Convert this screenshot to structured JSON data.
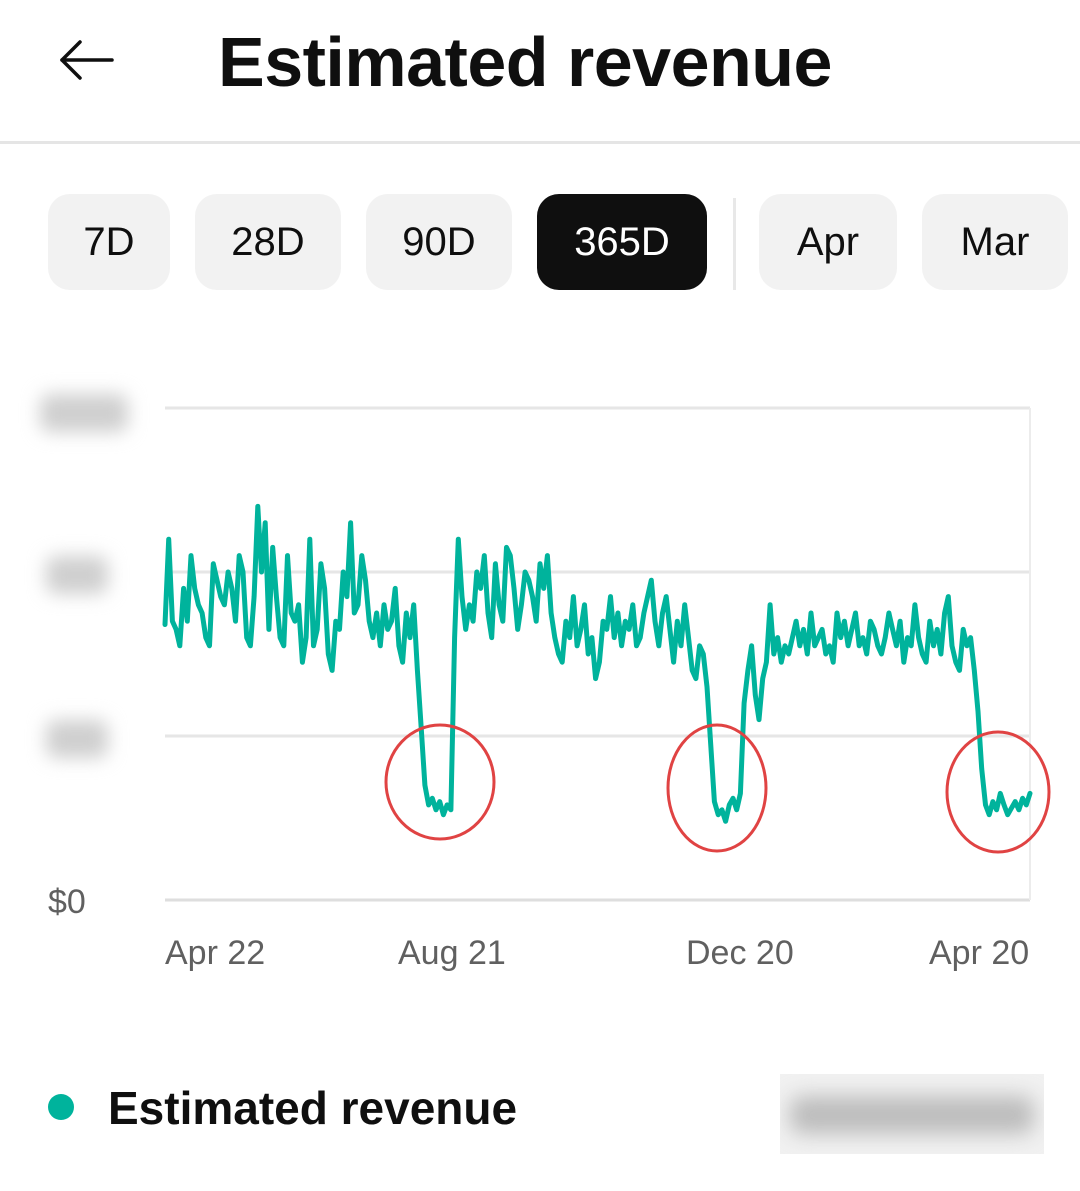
{
  "header": {
    "title": "Estimated revenue",
    "back_icon": "arrow-left-icon"
  },
  "chips": {
    "items": [
      {
        "label": "7D",
        "active": false
      },
      {
        "label": "28D",
        "active": false
      },
      {
        "label": "90D",
        "active": false
      },
      {
        "label": "365D",
        "active": true
      },
      {
        "label": "Apr",
        "active": false
      },
      {
        "label": "Mar",
        "active": false
      }
    ]
  },
  "chart_data": {
    "type": "line",
    "title": "",
    "xlabel": "",
    "ylabel": "",
    "ylim": [
      0,
      3
    ],
    "y_tick_labels": [
      "$0"
    ],
    "x_tick_labels": [
      "Apr 22",
      "Aug 21",
      "Dec 20",
      "Apr 20"
    ],
    "grid": true,
    "series_color": "#00b39c",
    "annotation_color": "#e04343",
    "annotations": [
      "circle",
      "circle",
      "circle"
    ],
    "series": [
      {
        "values": [
          1.68,
          2.2,
          1.7,
          1.65,
          1.55,
          1.9,
          1.7,
          2.1,
          1.9,
          1.8,
          1.75,
          1.6,
          1.55,
          2.05,
          1.95,
          1.85,
          1.8,
          2.0,
          1.9,
          1.7,
          2.1,
          2.0,
          1.6,
          1.55,
          1.85,
          2.4,
          2.0,
          2.3,
          1.65,
          2.15,
          1.85,
          1.6,
          1.55,
          2.1,
          1.75,
          1.7,
          1.8,
          1.45,
          1.6,
          2.2,
          1.55,
          1.65,
          2.05,
          1.9,
          1.5,
          1.4,
          1.7,
          1.65,
          2.0,
          1.85,
          2.3,
          1.75,
          1.8,
          2.1,
          1.95,
          1.7,
          1.6,
          1.75,
          1.55,
          1.8,
          1.65,
          1.7,
          1.9,
          1.55,
          1.45,
          1.75,
          1.6,
          1.8,
          1.4,
          1.05,
          0.7,
          0.58,
          0.62,
          0.55,
          0.6,
          0.52,
          0.58,
          0.55,
          1.6,
          2.2,
          1.85,
          1.65,
          1.8,
          1.7,
          2.0,
          1.9,
          2.1,
          1.75,
          1.6,
          2.05,
          1.8,
          1.7,
          2.15,
          2.1,
          1.9,
          1.65,
          1.8,
          2.0,
          1.95,
          1.85,
          1.7,
          2.05,
          1.9,
          2.1,
          1.75,
          1.6,
          1.5,
          1.45,
          1.7,
          1.6,
          1.85,
          1.55,
          1.65,
          1.8,
          1.5,
          1.6,
          1.35,
          1.45,
          1.7,
          1.65,
          1.85,
          1.6,
          1.75,
          1.55,
          1.7,
          1.65,
          1.8,
          1.55,
          1.6,
          1.75,
          1.85,
          1.95,
          1.7,
          1.55,
          1.75,
          1.85,
          1.65,
          1.45,
          1.7,
          1.55,
          1.8,
          1.6,
          1.4,
          1.35,
          1.55,
          1.5,
          1.3,
          0.95,
          0.6,
          0.52,
          0.55,
          0.48,
          0.58,
          0.62,
          0.55,
          0.65,
          1.2,
          1.4,
          1.55,
          1.25,
          1.1,
          1.35,
          1.45,
          1.8,
          1.5,
          1.6,
          1.45,
          1.55,
          1.5,
          1.6,
          1.7,
          1.55,
          1.65,
          1.5,
          1.75,
          1.55,
          1.6,
          1.65,
          1.5,
          1.55,
          1.45,
          1.75,
          1.6,
          1.7,
          1.55,
          1.65,
          1.75,
          1.55,
          1.6,
          1.5,
          1.7,
          1.65,
          1.55,
          1.5,
          1.6,
          1.75,
          1.65,
          1.55,
          1.7,
          1.45,
          1.6,
          1.55,
          1.8,
          1.6,
          1.5,
          1.45,
          1.7,
          1.55,
          1.65,
          1.5,
          1.75,
          1.85,
          1.55,
          1.45,
          1.4,
          1.65,
          1.55,
          1.6,
          1.4,
          1.15,
          0.8,
          0.58,
          0.52,
          0.6,
          0.55,
          0.65,
          0.58,
          0.52,
          0.56,
          0.6,
          0.55,
          0.62,
          0.58,
          0.65
        ]
      }
    ]
  },
  "legend": {
    "label": "Estimated revenue",
    "color": "#00b39c"
  }
}
